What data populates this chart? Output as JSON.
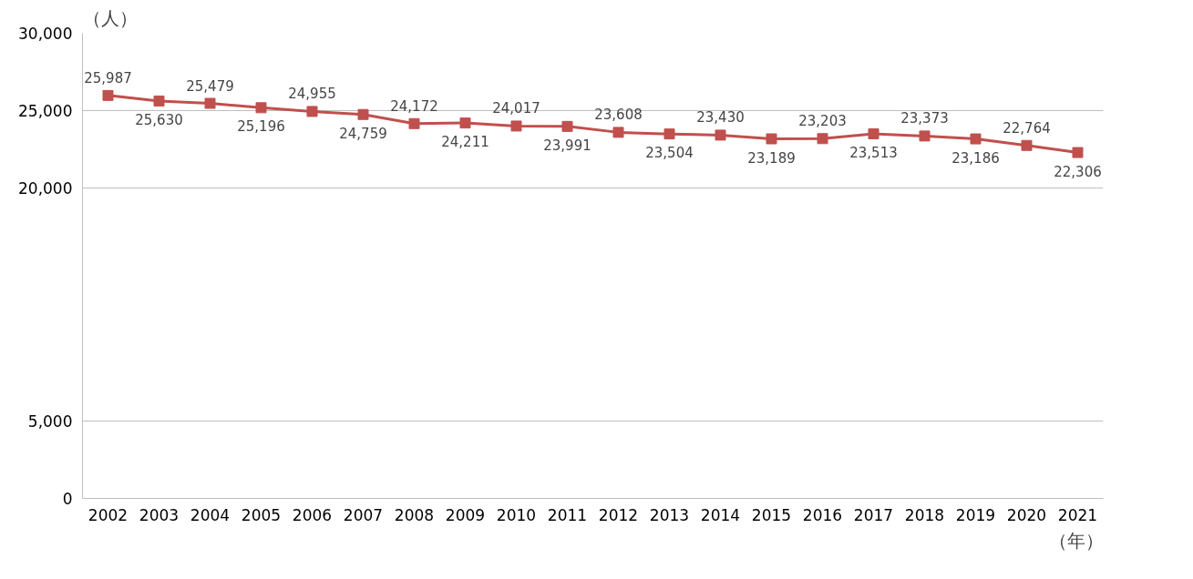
{
  "chart_data": {
    "type": "line",
    "xlabel": "（年）",
    "ylabel": "（人）",
    "categories": [
      "2002",
      "2003",
      "2004",
      "2005",
      "2006",
      "2007",
      "2008",
      "2009",
      "2010",
      "2011",
      "2012",
      "2013",
      "2014",
      "2015",
      "2016",
      "2017",
      "2018",
      "2019",
      "2020",
      "2021"
    ],
    "series": [
      {
        "color": "#c0504d",
        "values": [
          25987,
          25630,
          25479,
          25196,
          24955,
          24759,
          24172,
          24211,
          24017,
          23991,
          23608,
          23504,
          23430,
          23189,
          23203,
          23513,
          23373,
          23186,
          22764,
          22306
        ],
        "value_labels": [
          "25,987",
          "25,630",
          "25,479",
          "25,196",
          "24,955",
          "24,759",
          "24,172",
          "24,211",
          "24,017",
          "23,991",
          "23,608",
          "23,504",
          "23,430",
          "23,189",
          "23,203",
          "23,513",
          "23,373",
          "23,186",
          "22,764",
          "22,306"
        ]
      }
    ],
    "ylim": [
      0,
      30000
    ],
    "yticks": [
      {
        "value": 0,
        "label": "0"
      },
      {
        "value": 5000,
        "label": "5,000"
      },
      {
        "value": 20000,
        "label": "20,000"
      },
      {
        "value": 25000,
        "label": "25,000"
      },
      {
        "value": 30000,
        "label": "30,000"
      }
    ],
    "grid": "y",
    "marker": "square",
    "line_style": "solid"
  }
}
